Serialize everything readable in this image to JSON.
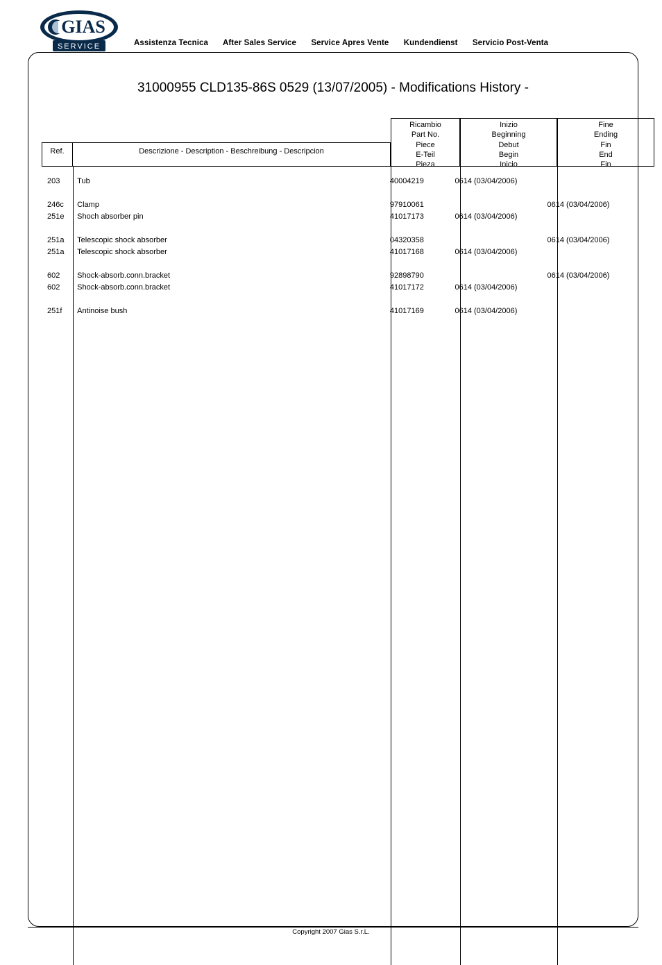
{
  "logo": {
    "top_text": "GIAS",
    "bottom_text": "SERVICE",
    "outer_fill": "#0a2a4a",
    "inner_fill": "#ffffff",
    "c_fill": "#a8c0d8"
  },
  "header": {
    "items": [
      "Assistenza Tecnica",
      "After Sales Service",
      "Service Apres Vente",
      "Kundendienst",
      "Servicio Post-Venta"
    ]
  },
  "title": "31000955  CLD135-86S  0529 (13/07/2005) - Modifications History -",
  "columns": {
    "ref": "Ref.",
    "descr": "Descrizione - Description - Beschreibung - Descripcion",
    "ricambio": [
      "Ricambio",
      "Part No.",
      "Piece",
      "E-Teil",
      "Pieza"
    ],
    "inizio": [
      "Inizio",
      "Beginning",
      "Debut",
      "Begin",
      "Inicio"
    ],
    "fine": [
      "Fine",
      "Ending",
      "Fin",
      "End",
      "Fin"
    ]
  },
  "rows": [
    {
      "ref": "203",
      "desc": "Tub",
      "part": "40004219",
      "begin": "0614 (03/04/2006)",
      "end": ""
    },
    {
      "gap": true
    },
    {
      "ref": "246c",
      "desc": "Clamp",
      "part": "97910061",
      "begin": "",
      "end": "0614 (03/04/2006)"
    },
    {
      "ref": "251e",
      "desc": "Shoch absorber pin",
      "part": "41017173",
      "begin": "0614 (03/04/2006)",
      "end": ""
    },
    {
      "gap": true
    },
    {
      "ref": "251a",
      "desc": "Telescopic shock absorber",
      "part": "04320358",
      "begin": "",
      "end": "0614 (03/04/2006)"
    },
    {
      "ref": "251a",
      "desc": "Telescopic shock absorber",
      "part": "41017168",
      "begin": "0614 (03/04/2006)",
      "end": ""
    },
    {
      "gap": true
    },
    {
      "ref": "602",
      "desc": "Shock-absorb.conn.bracket",
      "part": "92898790",
      "begin": "",
      "end": "0614 (03/04/2006)"
    },
    {
      "ref": "602",
      "desc": "Shock-absorb.conn.bracket",
      "part": "41017172",
      "begin": "0614 (03/04/2006)",
      "end": ""
    },
    {
      "gap": true
    },
    {
      "ref": "251f",
      "desc": "Antinoise bush",
      "part": "41017169",
      "begin": "0614 (03/04/2006)",
      "end": ""
    }
  ],
  "footer": "Copyright 2007 Gias S.r.L."
}
